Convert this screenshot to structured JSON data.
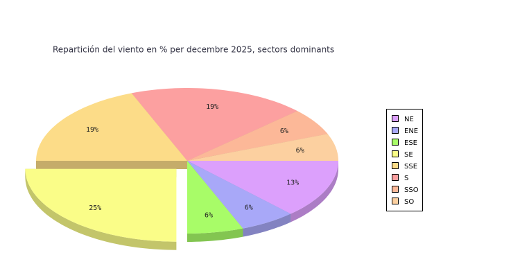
{
  "chart_data": {
    "type": "pie3d",
    "title": "Repartición del viento en % per decembre 2025, sectors dominants",
    "categories": [
      "NE",
      "ENE",
      "ESE",
      "SE",
      "SSE",
      "S",
      "SSO",
      "SO"
    ],
    "values": [
      13,
      6,
      6,
      25,
      19,
      19,
      6,
      6
    ],
    "value_labels": [
      "13%",
      "6%",
      "6%",
      "25%",
      "19%",
      "19%",
      "6%",
      "6%"
    ],
    "colors": [
      "#dca0fc",
      "#a8a8f8",
      "#a8fc68",
      "#fafd88",
      "#fcdc88",
      "#fca0a0",
      "#fcb898",
      "#fcd0a0"
    ],
    "exploded_slice": 3,
    "legend": "right"
  }
}
